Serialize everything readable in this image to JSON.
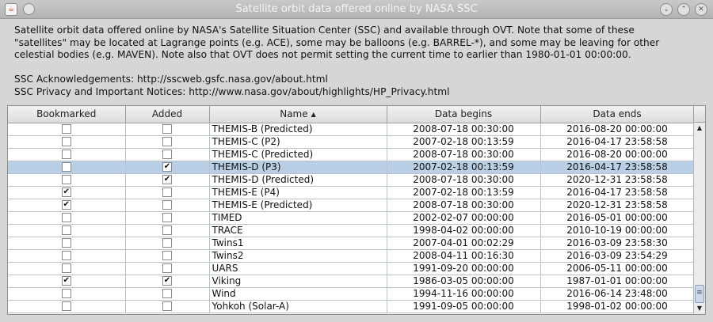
{
  "window": {
    "title": "Satellite orbit data offered online by NASA SSC",
    "buttons": {
      "minimize": "⌄",
      "maximize": "⌃",
      "close": "✕"
    }
  },
  "intro": {
    "line1": "Satellite orbit data offered online by NASA's Satellite Situation Center (SSC) and available through OVT. Note that some of these",
    "line2": "\"satellites\" may be located at Lagrange points (e.g. ACE), some may be balloons (e.g. BARREL-*), and some may be leaving for other",
    "line3": "celestial bodies (e.g. MAVEN). Note also that OVT does not permit setting the current time to earlier than 1980-01-01 00:00:00.",
    "ack": "SSC Acknowledgements: http://sscweb.gsfc.nasa.gov/about.html",
    "privacy": "SSC Privacy and Important Notices: http://www.nasa.gov/about/highlights/HP_Privacy.html"
  },
  "table": {
    "columns": {
      "bookmarked": "Bookmarked",
      "added": "Added",
      "name": "Name",
      "begins": "Data begins",
      "ends": "Data ends"
    },
    "rows": [
      {
        "bookmarked": false,
        "added": false,
        "name": "THEMIS-B (Predicted)",
        "begins": "2008-07-18 00:30:00",
        "ends": "2016-08-20 00:00:00"
      },
      {
        "bookmarked": false,
        "added": false,
        "name": "THEMIS-C (P2)",
        "begins": "2007-02-18 00:13:59",
        "ends": "2016-04-17 23:58:58"
      },
      {
        "bookmarked": false,
        "added": false,
        "name": "THEMIS-C (Predicted)",
        "begins": "2008-07-18 00:30:00",
        "ends": "2016-08-20 00:00:00"
      },
      {
        "bookmarked": false,
        "added": true,
        "name": "THEMIS-D (P3)",
        "begins": "2007-02-18 00:13:59",
        "ends": "2016-04-17 23:58:58",
        "selected": true
      },
      {
        "bookmarked": false,
        "added": true,
        "name": "THEMIS-D (Predicted)",
        "begins": "2008-07-18 00:30:00",
        "ends": "2020-12-31 23:58:58"
      },
      {
        "bookmarked": true,
        "added": false,
        "name": "THEMIS-E (P4)",
        "begins": "2007-02-18 00:13:59",
        "ends": "2016-04-17 23:58:58"
      },
      {
        "bookmarked": true,
        "added": false,
        "name": "THEMIS-E (Predicted)",
        "begins": "2008-07-18 00:30:00",
        "ends": "2020-12-31 23:58:58"
      },
      {
        "bookmarked": false,
        "added": false,
        "name": "TIMED",
        "begins": "2002-02-07 00:00:00",
        "ends": "2016-05-01 00:00:00"
      },
      {
        "bookmarked": false,
        "added": false,
        "name": "TRACE",
        "begins": "1998-04-02 00:00:00",
        "ends": "2010-10-19 00:00:00"
      },
      {
        "bookmarked": false,
        "added": false,
        "name": "Twins1",
        "begins": "2007-04-01 00:02:29",
        "ends": "2016-03-09 23:58:30"
      },
      {
        "bookmarked": false,
        "added": false,
        "name": "Twins2",
        "begins": "2008-04-11 00:16:30",
        "ends": "2016-03-09 23:54:29"
      },
      {
        "bookmarked": false,
        "added": false,
        "name": "UARS",
        "begins": "1991-09-20 00:00:00",
        "ends": "2006-05-11 00:00:00"
      },
      {
        "bookmarked": true,
        "added": true,
        "name": "Viking",
        "begins": "1986-03-05 00:00:00",
        "ends": "1987-01-01 00:00:00"
      },
      {
        "bookmarked": false,
        "added": false,
        "name": "Wind",
        "begins": "1994-11-16 00:00:00",
        "ends": "2016-06-14 23:48:00"
      },
      {
        "bookmarked": false,
        "added": false,
        "name": "Yohkoh (Solar-A)",
        "begins": "1991-09-05 00:00:00",
        "ends": "1998-01-02 00:00:00"
      }
    ]
  },
  "icons": {
    "sort": "sort-ascending-icon",
    "check": "✔"
  }
}
